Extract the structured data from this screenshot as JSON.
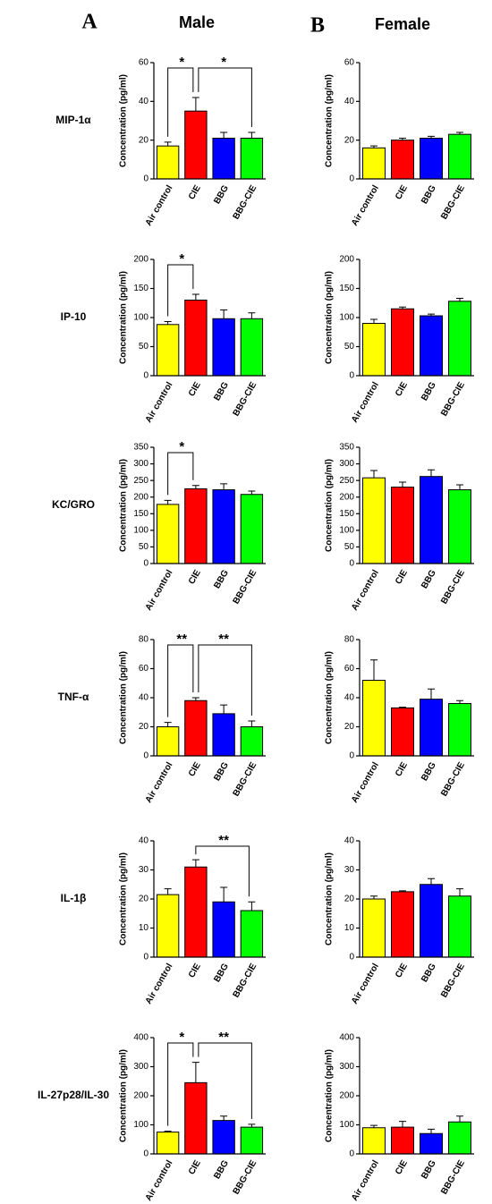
{
  "panels": [
    {
      "letter": "A",
      "title": "Male"
    },
    {
      "letter": "B",
      "title": "Female"
    }
  ],
  "row_labels": [
    "MIP-1α",
    "IP-10",
    "KC/GRO",
    "TNF-α",
    "IL-1β",
    "IL-27p28/IL-30"
  ],
  "chart_data": [
    {
      "type": "bar",
      "ylabel": "Concentration (pg/ml)",
      "categories": [
        "Air control",
        "CIE",
        "BBG",
        "BBG-CIE"
      ],
      "colors": [
        "#ffff00",
        "#ff0000",
        "#0000ff",
        "#00ff00"
      ],
      "values": [
        17,
        35,
        21,
        21
      ],
      "errors": [
        2,
        7,
        3,
        3
      ],
      "ylim": [
        0,
        60
      ],
      "yticks": [
        0,
        20,
        40,
        60
      ],
      "annotations": [
        {
          "text": "*",
          "between": [
            "Air control",
            "CIE"
          ]
        },
        {
          "text": "*",
          "between": [
            "CIE",
            "BBG-CIE"
          ]
        }
      ]
    },
    {
      "type": "bar",
      "ylabel": "Concentration (pg/ml)",
      "categories": [
        "Air control",
        "CIE",
        "BBG",
        "BBG-CIE"
      ],
      "colors": [
        "#ffff00",
        "#ff0000",
        "#0000ff",
        "#00ff00"
      ],
      "values": [
        16,
        20,
        21,
        23
      ],
      "errors": [
        1,
        1,
        1,
        1
      ],
      "ylim": [
        0,
        60
      ],
      "yticks": [
        0,
        20,
        40,
        60
      ],
      "annotations": []
    },
    {
      "type": "bar",
      "ylabel": "Concentration (pg/ml)",
      "categories": [
        "Air control",
        "CIE",
        "BBG",
        "BBG-CIE"
      ],
      "colors": [
        "#ffff00",
        "#ff0000",
        "#0000ff",
        "#00ff00"
      ],
      "values": [
        88,
        130,
        98,
        98
      ],
      "errors": [
        5,
        10,
        15,
        10
      ],
      "ylim": [
        0,
        200
      ],
      "yticks": [
        0,
        50,
        100,
        150,
        200
      ],
      "annotations": [
        {
          "text": "*",
          "between": [
            "Air control",
            "CIE"
          ]
        }
      ]
    },
    {
      "type": "bar",
      "ylabel": "Concentration (pg/ml)",
      "categories": [
        "Air control",
        "CIE",
        "BBG",
        "BBG-CIE"
      ],
      "colors": [
        "#ffff00",
        "#ff0000",
        "#0000ff",
        "#00ff00"
      ],
      "values": [
        90,
        115,
        103,
        128
      ],
      "errors": [
        7,
        3,
        3,
        5
      ],
      "ylim": [
        0,
        200
      ],
      "yticks": [
        0,
        50,
        100,
        150,
        200
      ],
      "annotations": []
    },
    {
      "type": "bar",
      "ylabel": "Concentration (pg/ml)",
      "categories": [
        "Air control",
        "CIE",
        "BBG",
        "BBG-CIE"
      ],
      "colors": [
        "#ffff00",
        "#ff0000",
        "#0000ff",
        "#00ff00"
      ],
      "values": [
        178,
        225,
        222,
        208
      ],
      "errors": [
        12,
        10,
        18,
        10
      ],
      "ylim": [
        0,
        350
      ],
      "yticks": [
        0,
        50,
        100,
        150,
        200,
        250,
        300,
        350
      ],
      "annotations": [
        {
          "text": "*",
          "between": [
            "Air control",
            "CIE"
          ]
        }
      ]
    },
    {
      "type": "bar",
      "ylabel": "Concentration (pg/ml)",
      "categories": [
        "Air control",
        "CIE",
        "BBG",
        "BBG-CIE"
      ],
      "colors": [
        "#ffff00",
        "#ff0000",
        "#0000ff",
        "#00ff00"
      ],
      "values": [
        258,
        230,
        262,
        222
      ],
      "errors": [
        22,
        15,
        20,
        15
      ],
      "ylim": [
        0,
        350
      ],
      "yticks": [
        0,
        50,
        100,
        150,
        200,
        250,
        300,
        350
      ],
      "annotations": []
    },
    {
      "type": "bar",
      "ylabel": "Concentration (pg/ml)",
      "categories": [
        "Air control",
        "CIE",
        "BBG",
        "BBG-CIE"
      ],
      "colors": [
        "#ffff00",
        "#ff0000",
        "#0000ff",
        "#00ff00"
      ],
      "values": [
        20,
        38,
        29,
        20
      ],
      "errors": [
        3,
        2,
        6,
        4
      ],
      "ylim": [
        0,
        80
      ],
      "yticks": [
        0,
        20,
        40,
        60,
        80
      ],
      "annotations": [
        {
          "text": "**",
          "between": [
            "Air control",
            "CIE"
          ]
        },
        {
          "text": "**",
          "between": [
            "CIE",
            "BBG-CIE"
          ]
        }
      ]
    },
    {
      "type": "bar",
      "ylabel": "Concentration (pg/ml)",
      "categories": [
        "Air control",
        "CIE",
        "BBG",
        "BBG-CIE"
      ],
      "colors": [
        "#ffff00",
        "#ff0000",
        "#0000ff",
        "#00ff00"
      ],
      "values": [
        52,
        33,
        39,
        36
      ],
      "errors": [
        14,
        0.5,
        7,
        2
      ],
      "ylim": [
        0,
        80
      ],
      "yticks": [
        0,
        20,
        40,
        60,
        80
      ],
      "annotations": []
    },
    {
      "type": "bar",
      "ylabel": "Concentration (pg/ml)",
      "categories": [
        "Air control",
        "CIE",
        "BBG",
        "BBG-CIE"
      ],
      "colors": [
        "#ffff00",
        "#ff0000",
        "#0000ff",
        "#00ff00"
      ],
      "values": [
        21.5,
        31,
        19,
        16
      ],
      "errors": [
        2,
        2.5,
        5,
        3
      ],
      "ylim": [
        0,
        40
      ],
      "yticks": [
        0,
        10,
        20,
        30,
        40
      ],
      "annotations": [
        {
          "text": "**",
          "between": [
            "CIE",
            "BBG-CIE"
          ]
        }
      ]
    },
    {
      "type": "bar",
      "ylabel": "Concentration (pg/ml)",
      "categories": [
        "Air control",
        "CIE",
        "BBG",
        "BBG-CIE"
      ],
      "colors": [
        "#ffff00",
        "#ff0000",
        "#0000ff",
        "#00ff00"
      ],
      "values": [
        20,
        22.5,
        25,
        21
      ],
      "errors": [
        1,
        0.3,
        2,
        2.5
      ],
      "ylim": [
        0,
        40
      ],
      "yticks": [
        0,
        10,
        20,
        30,
        40
      ],
      "annotations": []
    },
    {
      "type": "bar",
      "ylabel": "Concentration (pg/ml)",
      "categories": [
        "Air control",
        "CIE",
        "BBG",
        "BBG-CIE"
      ],
      "colors": [
        "#ffff00",
        "#ff0000",
        "#0000ff",
        "#00ff00"
      ],
      "values": [
        75,
        245,
        115,
        92
      ],
      "errors": [
        3,
        70,
        15,
        10
      ],
      "ylim": [
        0,
        400
      ],
      "yticks": [
        0,
        100,
        200,
        300,
        400
      ],
      "annotations": [
        {
          "text": "*",
          "between": [
            "Air control",
            "CIE"
          ]
        },
        {
          "text": "**",
          "between": [
            "CIE",
            "BBG-CIE"
          ]
        }
      ]
    },
    {
      "type": "bar",
      "ylabel": "Concentration (pg/ml)",
      "categories": [
        "Air control",
        "CIE",
        "BBG",
        "BBG-CIE"
      ],
      "colors": [
        "#ffff00",
        "#ff0000",
        "#0000ff",
        "#00ff00"
      ],
      "values": [
        90,
        92,
        70,
        110
      ],
      "errors": [
        8,
        20,
        15,
        20
      ],
      "ylim": [
        0,
        400
      ],
      "yticks": [
        0,
        100,
        200,
        300,
        400
      ],
      "annotations": []
    }
  ]
}
